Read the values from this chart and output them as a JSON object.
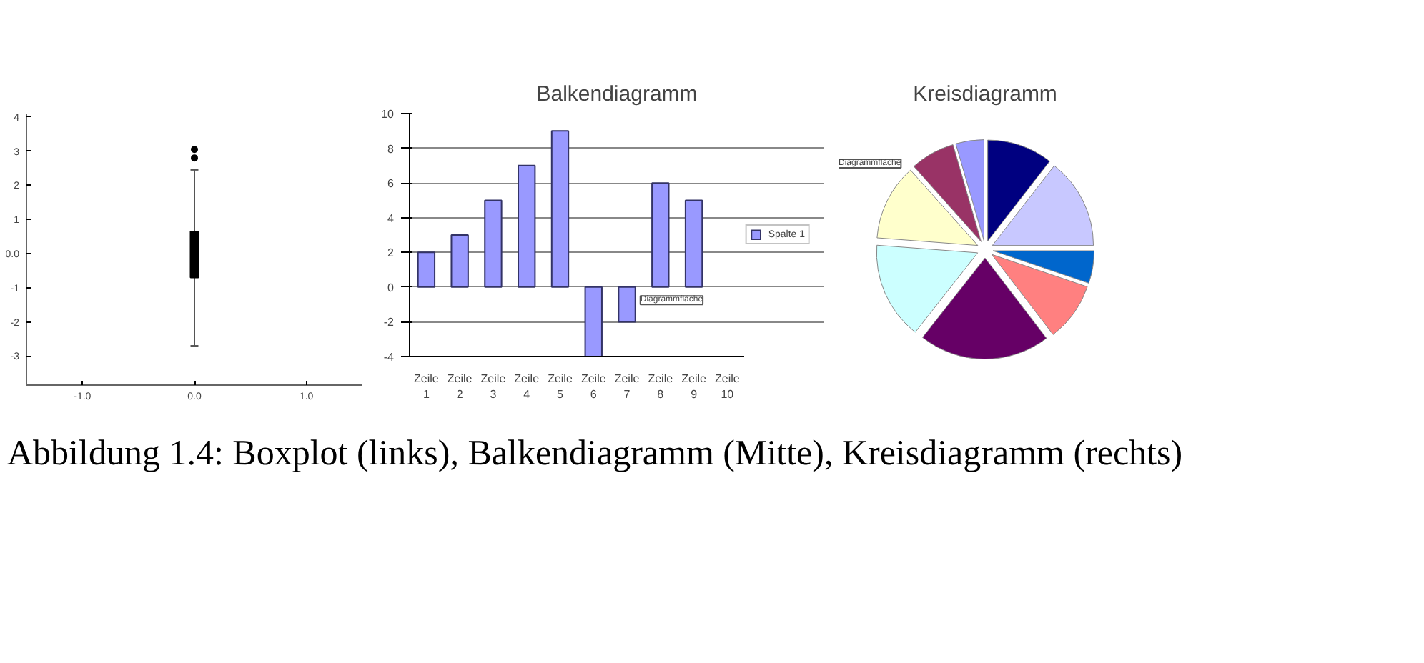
{
  "chart_data": [
    {
      "type": "box",
      "x": [
        0
      ],
      "xlim": [
        -1.5,
        1.5
      ],
      "xticks": [
        {
          "value": -1,
          "label": "-1.0"
        },
        {
          "value": 0,
          "label": "0.0"
        },
        {
          "value": 1,
          "label": "1.0"
        }
      ],
      "ylim": [
        -3.85,
        4.1
      ],
      "yticks": [
        -3,
        -2,
        -1,
        {
          "value": 0,
          "label": "0.0"
        },
        1,
        2,
        3,
        4
      ],
      "color": "#000000",
      "boxes": [
        {
          "low": -2.7,
          "q1": -0.7,
          "q3": 0.65,
          "high": 2.45,
          "outliers": [
            2.8,
            3.05
          ]
        }
      ],
      "grid": false
    },
    {
      "type": "bar",
      "title": "Balkendiagramm",
      "categories": [
        "Zeile 1",
        "Zeile 2",
        "Zeile 3",
        "Zeile 4",
        "Zeile 5",
        "Zeile 6",
        "Zeile 7",
        "Zeile 8",
        "Zeile 9",
        "Zeile 10"
      ],
      "series": [
        {
          "name": "Spalte 1",
          "color": "#9999ff",
          "values": [
            2,
            3,
            5,
            7,
            9,
            -4,
            -2,
            6,
            5,
            null
          ]
        }
      ],
      "ylim": [
        -4,
        10
      ],
      "yticks": [
        -4,
        -2,
        0,
        2,
        4,
        6,
        8,
        10
      ],
      "grid": "y",
      "legend": "right",
      "annotations": [
        "Diagrammfläche"
      ]
    },
    {
      "type": "pie",
      "title": "Kreisdiagramm",
      "categories": [
        null,
        null,
        null,
        null,
        null,
        null,
        null,
        null,
        null
      ],
      "values": [
        10.5,
        14.5,
        5.2,
        9.4,
        21.0,
        15.6,
        12.2,
        7.1,
        4.5
      ],
      "colors": [
        "#000080",
        "#c8c8ff",
        "#0066cc",
        "#ff8080",
        "#660066",
        "#ccffff",
        "#ffffcc",
        "#993366",
        "#9999ff"
      ],
      "annotations": [
        "Diagrammfläche",
        "Abbildung 1.4:  Boxplot (links), Balkendiagramm (Mitte), Kreisdiagramm (rechts)"
      ]
    }
  ]
}
